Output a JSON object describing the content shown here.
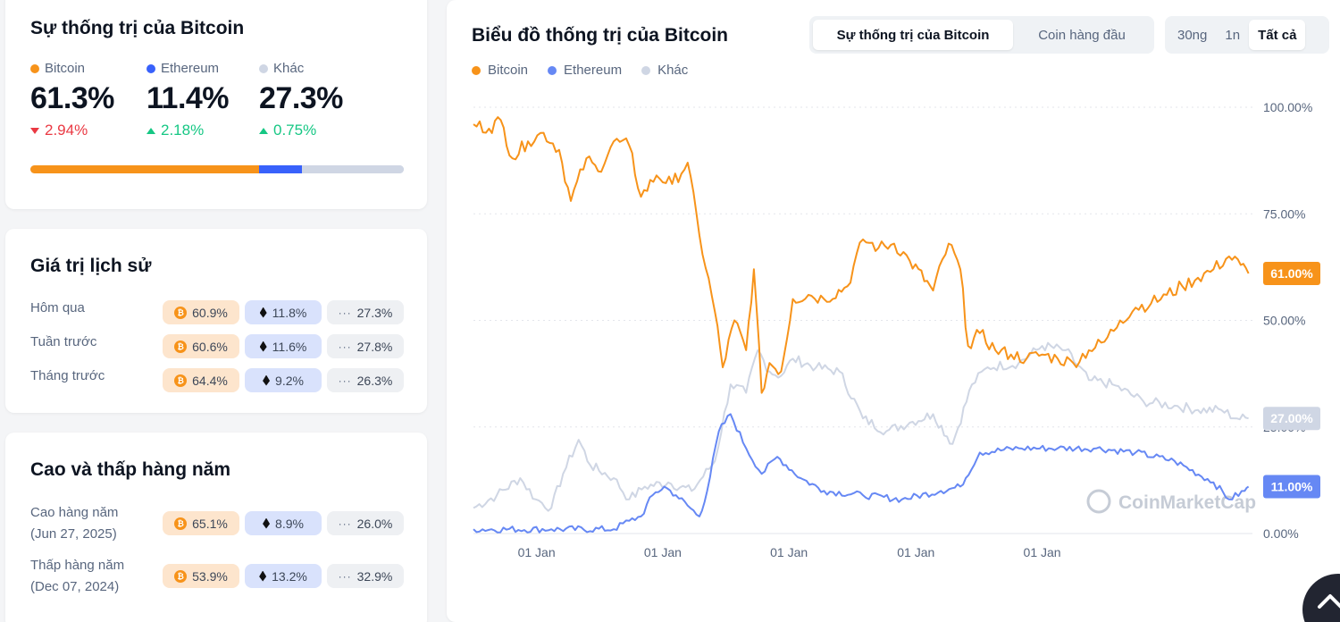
{
  "dominance": {
    "title": "Sự thống trị của Bitcoin",
    "items": [
      {
        "label": "Bitcoin",
        "value": "61.3%",
        "change": "2.94%",
        "direction": "down",
        "color": "#f7931a",
        "share": 61.3
      },
      {
        "label": "Ethereum",
        "value": "11.4%",
        "change": "2.18%",
        "direction": "up",
        "color": "#3861fb",
        "share": 11.4
      },
      {
        "label": "Khác",
        "value": "27.3%",
        "change": "0.75%",
        "direction": "up",
        "color": "#cfd6e4",
        "share": 27.3
      }
    ]
  },
  "history": {
    "title": "Giá trị lịch sử",
    "rows": [
      {
        "label": "Hôm qua",
        "btc": "60.9%",
        "eth": "11.8%",
        "other": "27.3%"
      },
      {
        "label": "Tuần trước",
        "btc": "60.6%",
        "eth": "11.6%",
        "other": "27.8%"
      },
      {
        "label": "Tháng trước",
        "btc": "64.4%",
        "eth": "9.2%",
        "other": "26.3%"
      }
    ]
  },
  "yearly": {
    "title": "Cao và thấp hàng năm",
    "rows": [
      {
        "label": "Cao hàng năm",
        "date": "(Jun 27, 2025)",
        "btc": "65.1%",
        "eth": "8.9%",
        "other": "26.0%"
      },
      {
        "label": "Thấp hàng năm",
        "date": "(Dec 07, 2024)",
        "btc": "53.9%",
        "eth": "13.2%",
        "other": "32.9%"
      }
    ]
  },
  "chart_header": {
    "title": "Biểu đồ thống trị của Bitcoin",
    "tabs": [
      {
        "label": "Sự thống trị của Bitcoin",
        "active": true
      },
      {
        "label": "Coin hàng đầu",
        "active": false
      }
    ],
    "ranges": [
      {
        "label": "30ng",
        "active": false
      },
      {
        "label": "1n",
        "active": false
      },
      {
        "label": "Tất cả",
        "active": true
      }
    ],
    "watermark": "CoinMarketCap"
  },
  "chart_data": {
    "type": "line",
    "title": "Biểu đồ thống trị của Bitcoin",
    "ylim": [
      0,
      100
    ],
    "y_ticks": [
      {
        "value": 100,
        "label": "100.00%"
      },
      {
        "value": 75,
        "label": "75.00%"
      },
      {
        "value": 50,
        "label": "50.00%"
      },
      {
        "value": 25,
        "label": "25.00%"
      },
      {
        "value": 0,
        "label": "0.00%"
      }
    ],
    "x_ticks": [
      {
        "position": 0.081,
        "label": "01 Jan"
      },
      {
        "position": 0.243,
        "label": "01 Jan"
      },
      {
        "position": 0.405,
        "label": "01 Jan"
      },
      {
        "position": 0.568,
        "label": "01 Jan"
      },
      {
        "position": 0.73,
        "label": "01 Jan"
      }
    ],
    "grid": true,
    "legend": "top-left",
    "series": [
      {
        "name": "Bitcoin",
        "color": "#f7931a",
        "last_label": "61.00%",
        "points": [
          [
            0,
            96
          ],
          [
            0.02,
            95
          ],
          [
            0.035,
            97
          ],
          [
            0.05,
            88
          ],
          [
            0.07,
            92
          ],
          [
            0.09,
            94
          ],
          [
            0.11,
            90
          ],
          [
            0.125,
            78
          ],
          [
            0.145,
            88
          ],
          [
            0.16,
            85
          ],
          [
            0.18,
            92
          ],
          [
            0.2,
            91
          ],
          [
            0.215,
            79
          ],
          [
            0.235,
            84
          ],
          [
            0.255,
            82
          ],
          [
            0.275,
            87
          ],
          [
            0.29,
            70
          ],
          [
            0.31,
            52
          ],
          [
            0.32,
            39
          ],
          [
            0.335,
            50
          ],
          [
            0.35,
            43
          ],
          [
            0.36,
            62
          ],
          [
            0.37,
            33
          ],
          [
            0.38,
            40
          ],
          [
            0.395,
            38
          ],
          [
            0.41,
            55
          ],
          [
            0.43,
            56
          ],
          [
            0.45,
            55
          ],
          [
            0.48,
            58
          ],
          [
            0.5,
            69
          ],
          [
            0.52,
            67
          ],
          [
            0.54,
            68
          ],
          [
            0.56,
            64
          ],
          [
            0.59,
            57
          ],
          [
            0.61,
            68
          ],
          [
            0.625,
            62
          ],
          [
            0.635,
            44
          ],
          [
            0.65,
            47
          ],
          [
            0.67,
            43
          ],
          [
            0.69,
            42
          ],
          [
            0.71,
            41
          ],
          [
            0.73,
            42
          ],
          [
            0.75,
            41
          ],
          [
            0.77,
            40
          ],
          [
            0.79,
            43
          ],
          [
            0.81,
            45
          ],
          [
            0.83,
            50
          ],
          [
            0.85,
            53
          ],
          [
            0.87,
            54
          ],
          [
            0.89,
            56
          ],
          [
            0.91,
            58
          ],
          [
            0.93,
            60
          ],
          [
            0.95,
            62
          ],
          [
            0.97,
            65
          ],
          [
            0.985,
            63
          ],
          [
            0.995,
            61
          ]
        ]
      },
      {
        "name": "Ethereum",
        "color": "#6688f4",
        "last_label": "11.00%",
        "points": [
          [
            0,
            1
          ],
          [
            0.1,
            1
          ],
          [
            0.18,
            1
          ],
          [
            0.2,
            3
          ],
          [
            0.215,
            4
          ],
          [
            0.23,
            9
          ],
          [
            0.245,
            11
          ],
          [
            0.26,
            9
          ],
          [
            0.29,
            4
          ],
          [
            0.3,
            10
          ],
          [
            0.315,
            24
          ],
          [
            0.33,
            28
          ],
          [
            0.35,
            20
          ],
          [
            0.37,
            14
          ],
          [
            0.39,
            18
          ],
          [
            0.42,
            13
          ],
          [
            0.45,
            10
          ],
          [
            0.5,
            9
          ],
          [
            0.55,
            8
          ],
          [
            0.6,
            10
          ],
          [
            0.625,
            11
          ],
          [
            0.65,
            19
          ],
          [
            0.7,
            20
          ],
          [
            0.75,
            20
          ],
          [
            0.8,
            20
          ],
          [
            0.85,
            19
          ],
          [
            0.9,
            17
          ],
          [
            0.95,
            12
          ],
          [
            0.97,
            8
          ],
          [
            0.99,
            10
          ],
          [
            0.995,
            11
          ]
        ]
      },
      {
        "name": "Khác",
        "color": "#cfd6e4",
        "last_label": "27.00%",
        "points": [
          [
            0,
            6
          ],
          [
            0.03,
            9
          ],
          [
            0.06,
            13
          ],
          [
            0.08,
            8
          ],
          [
            0.1,
            6
          ],
          [
            0.115,
            14
          ],
          [
            0.135,
            22
          ],
          [
            0.15,
            16
          ],
          [
            0.18,
            13
          ],
          [
            0.2,
            8
          ],
          [
            0.22,
            11
          ],
          [
            0.25,
            12
          ],
          [
            0.28,
            10
          ],
          [
            0.31,
            17
          ],
          [
            0.33,
            35
          ],
          [
            0.35,
            33
          ],
          [
            0.365,
            43
          ],
          [
            0.38,
            38
          ],
          [
            0.395,
            37
          ],
          [
            0.41,
            41
          ],
          [
            0.44,
            39
          ],
          [
            0.47,
            38
          ],
          [
            0.5,
            27
          ],
          [
            0.53,
            24
          ],
          [
            0.56,
            26
          ],
          [
            0.59,
            28
          ],
          [
            0.615,
            21
          ],
          [
            0.64,
            35
          ],
          [
            0.66,
            39
          ],
          [
            0.7,
            40
          ],
          [
            0.73,
            44
          ],
          [
            0.76,
            43
          ],
          [
            0.79,
            36
          ],
          [
            0.82,
            35
          ],
          [
            0.86,
            31
          ],
          [
            0.9,
            30
          ],
          [
            0.93,
            29
          ],
          [
            0.96,
            29
          ],
          [
            0.98,
            27
          ],
          [
            0.995,
            27
          ]
        ]
      }
    ]
  }
}
